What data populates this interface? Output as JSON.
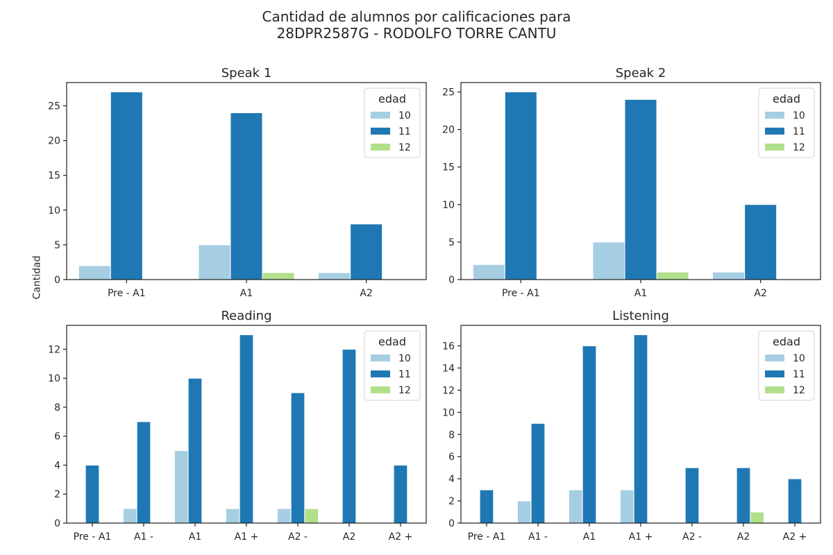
{
  "title_line1": "Cantidad de alumnos por calificaciones para",
  "title_line2": "28DPR2587G - RODOLFO TORRE CANTU",
  "ylabel": "Cantidad",
  "colors": {
    "10": "#a6cee3",
    "11": "#1f78b4",
    "12": "#b2df8a"
  },
  "chart_data": [
    {
      "type": "bar",
      "title": "Speak 1",
      "categories": [
        "Pre - A1",
        "A1",
        "A2"
      ],
      "legend_title": "edad",
      "legend_position": "top-right",
      "ylim": [
        0,
        28.35
      ],
      "yticks": [
        0,
        5,
        10,
        15,
        20,
        25
      ],
      "series": [
        {
          "name": "10",
          "values": [
            2,
            5,
            1
          ]
        },
        {
          "name": "11",
          "values": [
            27,
            24,
            8
          ]
        },
        {
          "name": "12",
          "values": [
            0,
            1,
            0
          ]
        }
      ]
    },
    {
      "type": "bar",
      "title": "Speak 2",
      "categories": [
        "Pre - A1",
        "A1",
        "A2"
      ],
      "legend_title": "edad",
      "legend_position": "top-right",
      "ylim": [
        0,
        26.25
      ],
      "yticks": [
        0,
        5,
        10,
        15,
        20,
        25
      ],
      "series": [
        {
          "name": "10",
          "values": [
            2,
            5,
            1
          ]
        },
        {
          "name": "11",
          "values": [
            25,
            24,
            10
          ]
        },
        {
          "name": "12",
          "values": [
            0,
            1,
            0
          ]
        }
      ]
    },
    {
      "type": "bar",
      "title": "Reading",
      "categories": [
        "Pre - A1",
        "A1 -",
        "A1",
        "A1 +",
        "A2 -",
        "A2",
        "A2 +"
      ],
      "legend_title": "edad",
      "legend_position": "top-right",
      "ylim": [
        0,
        13.65
      ],
      "yticks": [
        0,
        2,
        4,
        6,
        8,
        10,
        12
      ],
      "series": [
        {
          "name": "10",
          "values": [
            0,
            1,
            5,
            1,
            1,
            0,
            0
          ]
        },
        {
          "name": "11",
          "values": [
            4,
            7,
            10,
            13,
            9,
            12,
            4
          ]
        },
        {
          "name": "12",
          "values": [
            0,
            0,
            0,
            0,
            1,
            0,
            0
          ]
        }
      ]
    },
    {
      "type": "bar",
      "title": "Listening",
      "categories": [
        "Pre - A1",
        "A1 -",
        "A1",
        "A1 +",
        "A2 -",
        "A2",
        "A2 +"
      ],
      "legend_title": "edad",
      "legend_position": "top-right",
      "ylim": [
        0,
        17.85
      ],
      "yticks": [
        0,
        2,
        4,
        6,
        8,
        10,
        12,
        14,
        16
      ],
      "series": [
        {
          "name": "10",
          "values": [
            0,
            2,
            3,
            3,
            0,
            0,
            0
          ]
        },
        {
          "name": "11",
          "values": [
            3,
            9,
            16,
            17,
            5,
            5,
            4
          ]
        },
        {
          "name": "12",
          "values": [
            0,
            0,
            0,
            0,
            0,
            1,
            0
          ]
        }
      ]
    }
  ]
}
